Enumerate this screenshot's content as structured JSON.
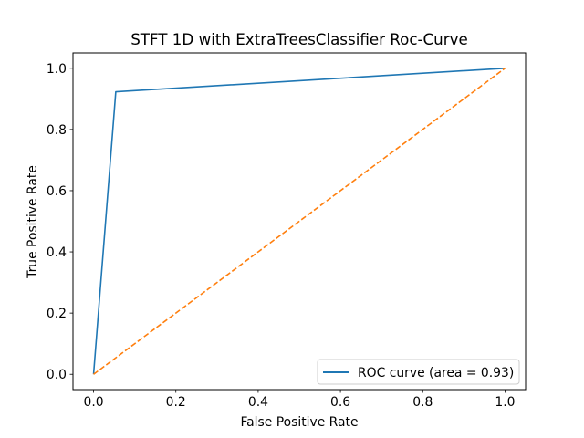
{
  "chart_data": {
    "type": "line",
    "title": "STFT 1D with ExtraTreesClassifier Roc-Curve",
    "xlabel": "False Positive Rate",
    "ylabel": "True Positive Rate",
    "xlim": [
      -0.05,
      1.05
    ],
    "ylim": [
      -0.05,
      1.05
    ],
    "xticks": [
      0.0,
      0.2,
      0.4,
      0.6,
      0.8,
      1.0
    ],
    "yticks": [
      0.0,
      0.2,
      0.4,
      0.6,
      0.8,
      1.0
    ],
    "xtick_labels": [
      "0.0",
      "0.2",
      "0.4",
      "0.6",
      "0.8",
      "1.0"
    ],
    "ytick_labels": [
      "0.0",
      "0.2",
      "0.4",
      "0.6",
      "0.8",
      "1.0"
    ],
    "grid": false,
    "legend_position": "lower-right",
    "series": [
      {
        "name": "ROC curve (area = 0.93)",
        "color": "#1f77b4",
        "style": "solid",
        "x": [
          0.0,
          0.054,
          1.0
        ],
        "y": [
          0.0,
          0.923,
          1.0
        ]
      },
      {
        "color": "#ff7f0e",
        "style": "dashed",
        "x": [
          0.0,
          1.0
        ],
        "y": [
          0.0,
          1.0
        ]
      }
    ]
  }
}
